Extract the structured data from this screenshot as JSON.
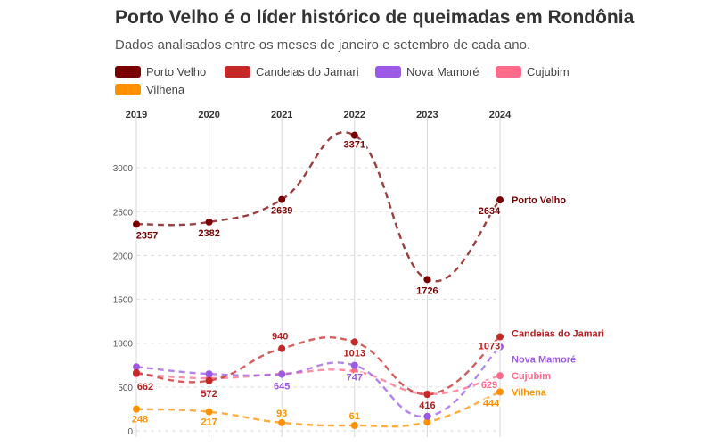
{
  "title": "Porto Velho é o líder histórico de queimadas em Rondônia",
  "subtitle": "Dados analisados entre os meses de janeiro e setembro de cada ano.",
  "chart_data": {
    "type": "line",
    "x": [
      "2019",
      "2020",
      "2021",
      "2022",
      "2023",
      "2024"
    ],
    "y_ticks": [
      "0",
      "500",
      "1000",
      "1500",
      "2000",
      "2500",
      "3000"
    ],
    "ylim": [
      0,
      3500
    ],
    "grid": true,
    "legend_position": "top",
    "series": [
      {
        "name": "Porto Velho",
        "color": "#7a0000",
        "label_color": "#7a0000",
        "values": [
          2357,
          2382,
          2639,
          3371,
          1726,
          2634
        ],
        "labels": [
          "2357",
          "2382",
          "2639",
          "3371",
          "1726",
          "2634"
        ]
      },
      {
        "name": "Candeias do Jamari",
        "color": "#c62828",
        "label_color": "#b71c1c",
        "values": [
          662,
          572,
          940,
          1013,
          416,
          1073
        ],
        "labels": [
          "662",
          "572",
          "940",
          "1013",
          "416",
          "1073"
        ]
      },
      {
        "name": "Nova Mamoré",
        "color": "#9c59e6",
        "label_color": "#9c59e6",
        "values": [
          730,
          650,
          645,
          747,
          165,
          960
        ],
        "labels": [
          "",
          "",
          "645",
          "747",
          "",
          ""
        ]
      },
      {
        "name": "Cujubim",
        "color": "#ff6b8b",
        "label_color": "#ff6b8b",
        "values": [
          650,
          600,
          650,
          680,
          420,
          629
        ],
        "labels": [
          "",
          "",
          "",
          "",
          "",
          "629"
        ]
      },
      {
        "name": "Vilhena",
        "color": "#ff9100",
        "label_color": "#ff9100",
        "values": [
          248,
          217,
          93,
          61,
          100,
          444
        ],
        "labels": [
          "248",
          "217",
          "93",
          "61",
          "",
          "444"
        ]
      }
    ]
  }
}
